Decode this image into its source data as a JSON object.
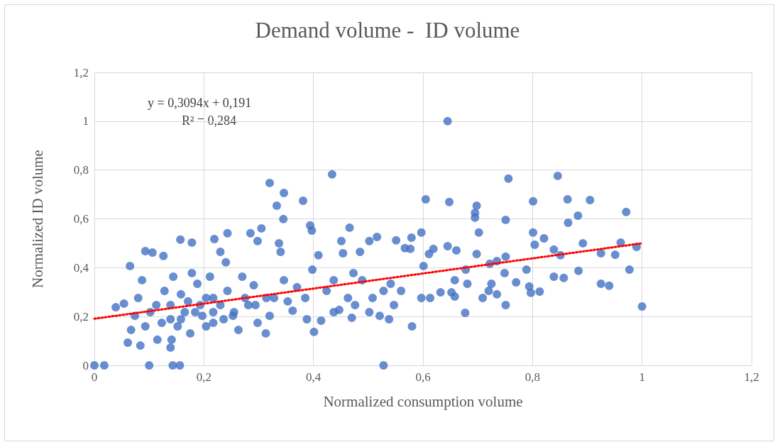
{
  "chart_data": {
    "type": "scatter",
    "title": "Demand volume -  ID volume",
    "xlabel": "Normalized consumption volume",
    "ylabel": "Normalized ID volume",
    "annotations": [
      "y = 0,3094x + 0,191",
      "R² = 0,284"
    ],
    "xlim": [
      0,
      1.2
    ],
    "ylim": [
      0,
      1.2
    ],
    "xticks": [
      0,
      {
        "value": 0.2,
        "label": "0,2"
      },
      {
        "value": 0.4,
        "label": "0,4"
      },
      {
        "value": 0.6,
        "label": "0,6"
      },
      {
        "value": 0.8,
        "label": "0,8"
      },
      1,
      {
        "value": 1.2,
        "label": "1,2"
      }
    ],
    "yticks": [
      0,
      {
        "value": 0.2,
        "label": "0,2"
      },
      {
        "value": 0.4,
        "label": "0,4"
      },
      {
        "value": 0.6,
        "label": "0,6"
      },
      {
        "value": 0.8,
        "label": "0,8"
      },
      1,
      {
        "value": 1.2,
        "label": "1,2"
      }
    ],
    "grid": true,
    "marker": "circle",
    "series": [
      {
        "color": "#4472c4",
        "x": [
          0,
          0.018,
          0.1,
          0.143,
          0.156,
          0.528,
          0.645,
          0.434,
          0.32,
          0.756,
          0.846,
          0.346,
          0.333,
          0.345,
          0.381,
          0.605,
          0.648,
          0.698,
          0.695,
          0.695,
          0.751,
          0.801,
          0.864,
          0.905,
          0.971,
          0.883,
          0.865,
          0.305,
          0.466,
          0.394,
          0.397,
          0.065,
          0.093,
          0.106,
          0.126,
          0.157,
          0.178,
          0.243,
          0.219,
          0.285,
          0.298,
          0.039,
          0.054,
          0.061,
          0.084,
          0.115,
          0.139,
          0.141,
          1.0,
          0.977,
          0.99,
          0.951,
          0.94,
          0.925,
          0.961,
          0.925,
          0.892,
          0.884,
          0.857,
          0.851,
          0.839,
          0.801,
          0.821,
          0.804,
          0.789,
          0.797,
          0.794,
          0.813,
          0.839,
          0.77,
          0.735,
          0.751,
          0.751,
          0.749,
          0.722,
          0.72,
          0.698,
          0.702,
          0.678,
          0.677,
          0.681,
          0.658,
          0.661,
          0.645,
          0.619,
          0.611,
          0.601,
          0.597,
          0.579,
          0.567,
          0.551,
          0.577,
          0.597,
          0.58,
          0.613,
          0.632,
          0.652,
          0.541,
          0.528,
          0.521,
          0.538,
          0.508,
          0.489,
          0.502,
          0.516,
          0.485,
          0.473,
          0.463,
          0.47,
          0.447,
          0.437,
          0.454,
          0.451,
          0.424,
          0.414,
          0.401,
          0.388,
          0.385,
          0.398,
          0.409,
          0.37,
          0.362,
          0.353,
          0.346,
          0.34,
          0.337,
          0.328,
          0.32,
          0.313,
          0.298,
          0.291,
          0.281,
          0.27,
          0.263,
          0.253,
          0.243,
          0.24,
          0.23,
          0.217,
          0.211,
          0.204,
          0.193,
          0.188,
          0.178,
          0.175,
          0.165,
          0.158,
          0.152,
          0.144,
          0.139,
          0.128,
          0.123,
          0.113,
          0.102,
          0.093,
          0.087,
          0.08,
          0.074,
          0.067,
          0.217,
          0.23,
          0.204,
          0.184,
          0.171,
          0.236,
          0.255,
          0.275,
          0.294,
          0.314,
          0.197,
          0.158,
          0.139,
          0.217,
          0.437,
          0.476,
          0.502,
          0.547,
          0.56,
          0.658,
          0.709,
          0.725,
          0.735
        ],
        "values": [
          0,
          0,
          0,
          0,
          0,
          0,
          1.0,
          0.782,
          0.747,
          0.765,
          0.776,
          0.706,
          0.654,
          0.599,
          0.674,
          0.68,
          0.669,
          0.654,
          0.625,
          0.605,
          0.596,
          0.672,
          0.68,
          0.677,
          0.628,
          0.613,
          0.584,
          0.561,
          0.564,
          0.573,
          0.552,
          0.407,
          0.468,
          0.462,
          0.448,
          0.515,
          0.503,
          0.541,
          0.517,
          0.541,
          0.509,
          0.238,
          0.253,
          0.093,
          0.081,
          0.105,
          0.073,
          0.105,
          0.241,
          0.392,
          0.485,
          0.453,
          0.326,
          0.334,
          0.503,
          0.459,
          0.5,
          0.387,
          0.358,
          0.451,
          0.474,
          0.544,
          0.52,
          0.494,
          0.392,
          0.297,
          0.323,
          0.302,
          0.363,
          0.34,
          0.427,
          0.445,
          0.247,
          0.378,
          0.416,
          0.305,
          0.456,
          0.544,
          0.392,
          0.215,
          0.334,
          0.349,
          0.471,
          0.488,
          0.477,
          0.456,
          0.407,
          0.544,
          0.523,
          0.48,
          0.512,
          0.477,
          0.276,
          0.16,
          0.276,
          0.299,
          0.299,
          0.334,
          0.305,
          0.203,
          0.189,
          0.276,
          0.349,
          0.509,
          0.526,
          0.465,
          0.378,
          0.276,
          0.195,
          0.227,
          0.349,
          0.459,
          0.509,
          0.305,
          0.183,
          0.137,
          0.189,
          0.276,
          0.392,
          0.451,
          0.32,
          0.224,
          0.262,
          0.349,
          0.465,
          0.5,
          0.276,
          0.203,
          0.131,
          0.174,
          0.328,
          0.247,
          0.363,
          0.145,
          0.203,
          0.305,
          0.422,
          0.465,
          0.276,
          0.363,
          0.16,
          0.247,
          0.334,
          0.378,
          0.131,
          0.218,
          0.291,
          0.16,
          0.363,
          0.247,
          0.305,
          0.174,
          0.247,
          0.218,
          0.16,
          0.349,
          0.276,
          0.203,
          0.145,
          0.218,
          0.247,
          0.276,
          0.218,
          0.262,
          0.189,
          0.218,
          0.276,
          0.247,
          0.276,
          0.203,
          0.189,
          0.189,
          0.174,
          0.218,
          0.247,
          0.218,
          0.247,
          0.305,
          0.282,
          0.276,
          0.334,
          0.291
        ]
      },
      {
        "type": "line",
        "color": "#ff0000",
        "line_style": "dotted",
        "marker": "none",
        "x": [
          0,
          1
        ],
        "values": [
          0.191,
          0.5
        ]
      }
    ]
  }
}
